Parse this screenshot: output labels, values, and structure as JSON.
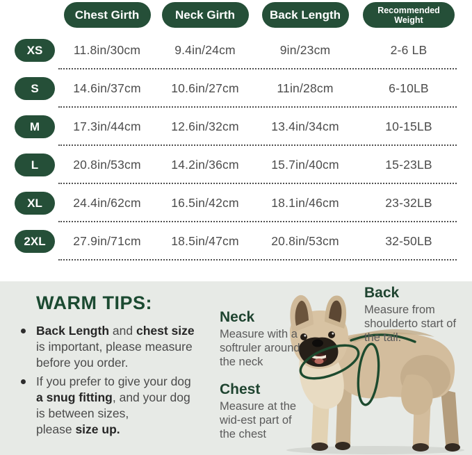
{
  "colors": {
    "pill_green": "#254f38",
    "heading_green": "#1b4a31",
    "panel_bg": "#e7eae6",
    "measure_line_green": "#1d4a2e",
    "table_text": "#4c4c4c"
  },
  "table": {
    "headers": [
      "Chest Girth",
      "Neck Girth",
      "Back Length",
      "Recommended Weight"
    ],
    "rows": [
      {
        "size": "XS",
        "chest": "11.8in/30cm",
        "neck": "9.4in/24cm",
        "back": "9in/23cm",
        "weight": "2-6 LB"
      },
      {
        "size": "S",
        "chest": "14.6in/37cm",
        "neck": "10.6in/27cm",
        "back": "11in/28cm",
        "weight": "6-10LB"
      },
      {
        "size": "M",
        "chest": "17.3in/44cm",
        "neck": "12.6in/32cm",
        "back": "13.4in/34cm",
        "weight": "10-15LB"
      },
      {
        "size": "L",
        "chest": "20.8in/53cm",
        "neck": "14.2in/36cm",
        "back": "15.7in/40cm",
        "weight": "15-23LB"
      },
      {
        "size": "XL",
        "chest": "24.4in/62cm",
        "neck": "16.5in/42cm",
        "back": "18.1in/46cm",
        "weight": "23-32LB"
      },
      {
        "size": "2XL",
        "chest": "27.9in/71cm",
        "neck": "18.5in/47cm",
        "back": "20.8in/53cm",
        "weight": "32-50LB"
      }
    ]
  },
  "tips": {
    "heading": "WARM TIPS:",
    "bullets": [
      {
        "lines": [
          [
            {
              "t": "Back Length",
              "b": 1
            },
            {
              "t": " and ",
              "b": 0
            },
            {
              "t": "chest size",
              "b": 1
            }
          ],
          [
            {
              "t": "is important, please measure",
              "b": 0
            }
          ],
          [
            {
              "t": "before you order.",
              "b": 0
            }
          ]
        ]
      },
      {
        "lines": [
          [
            {
              "t": "If you prefer to give your dog",
              "b": 0
            }
          ],
          [
            {
              "t": "a snug fitting",
              "b": 1
            },
            {
              "t": ", and your dog",
              "b": 0
            }
          ],
          [
            {
              "t": "is between sizes,",
              "b": 0
            }
          ],
          [
            {
              "t": "please ",
              "b": 0
            },
            {
              "t": "size up.",
              "b": 1
            }
          ]
        ]
      }
    ]
  },
  "diagram": {
    "neck": {
      "title": "Neck",
      "lines": [
        [
          {
            "t": "Measure with a",
            "b": 0
          }
        ],
        [
          {
            "t": "softruler around",
            "b": 0
          }
        ],
        [
          {
            "t": "the neck",
            "b": 0
          }
        ]
      ]
    },
    "back": {
      "title": "Back",
      "lines": [
        [
          {
            "t": "Measure from",
            "b": 0
          }
        ],
        [
          {
            "t": "shoulderto start of",
            "b": 0
          }
        ],
        [
          {
            "t": "the tail.",
            "b": 0
          }
        ]
      ]
    },
    "chest": {
      "title": "Chest",
      "lines": [
        [
          {
            "t": "Measure at the",
            "b": 0
          }
        ],
        [
          {
            "t": "wid-est part of",
            "b": 0
          }
        ],
        [
          {
            "t": "the chest",
            "b": 0
          }
        ]
      ]
    }
  }
}
